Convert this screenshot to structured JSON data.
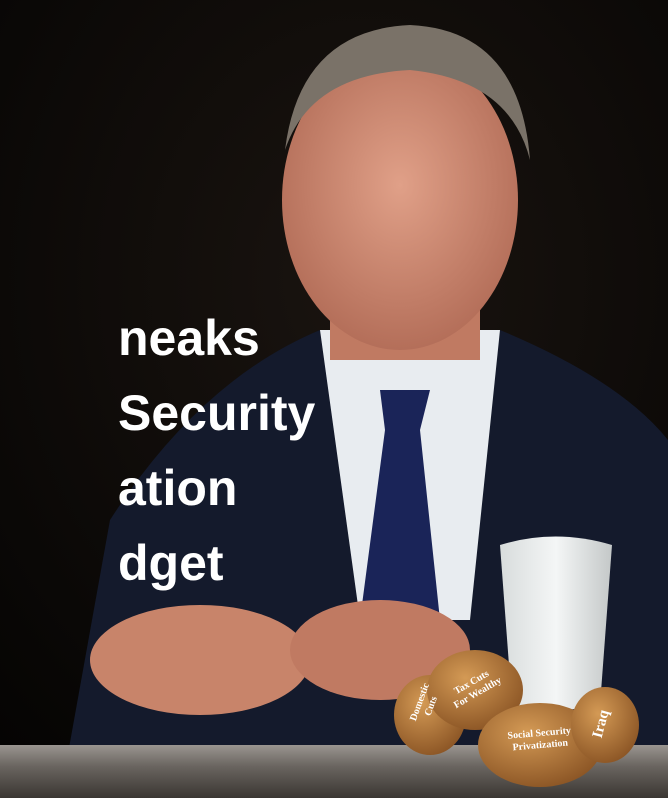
{
  "headline": {
    "lines": [
      "neaks",
      "Security",
      "ation",
      "dget"
    ]
  },
  "cookies": [
    {
      "lines": [
        "Domestic",
        "Cuts"
      ]
    },
    {
      "lines": [
        "Tax Cuts",
        "For Wealthy"
      ]
    },
    {
      "lines": [
        "Social Security",
        "Privatization"
      ]
    },
    {
      "lines": [
        "Iraq"
      ]
    }
  ]
}
